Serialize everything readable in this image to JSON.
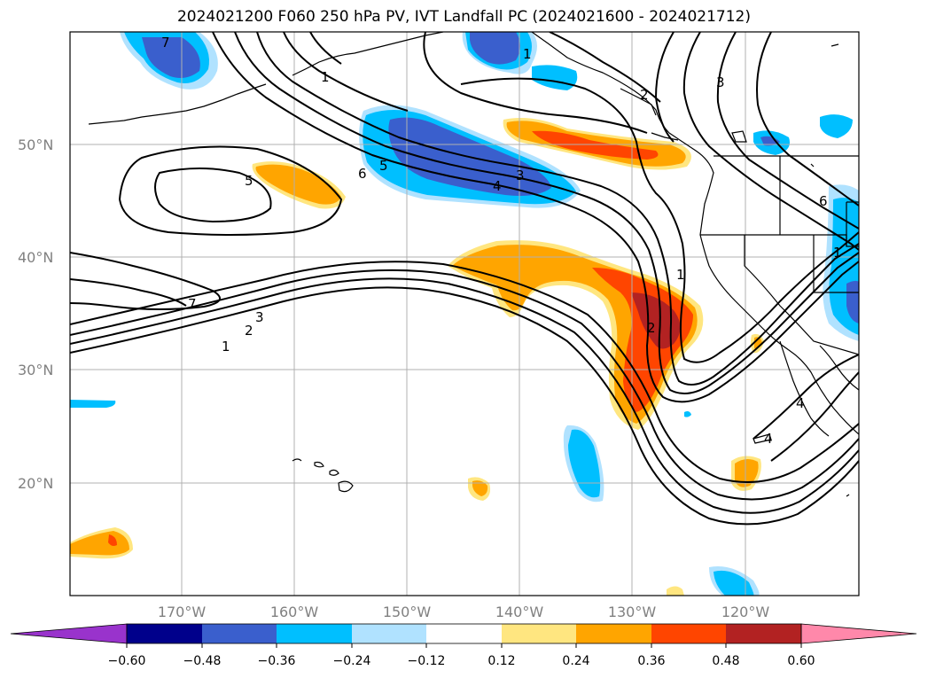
{
  "title": "2024021200 F060 250 hPa PV, IVT Landfall PC (2024021600 - 2024021712)",
  "map": {
    "region": "North-East Pacific and western North America",
    "lat_labels": [
      "50°N",
      "40°N",
      "30°N",
      "20°N"
    ],
    "lon_labels": [
      "170°W",
      "160°W",
      "150°W",
      "140°W",
      "130°W",
      "120°W"
    ],
    "grid": true
  },
  "colorbar": {
    "tick_labels": [
      "−0.60",
      "−0.48",
      "−0.36",
      "−0.24",
      "−0.12",
      "0.12",
      "0.24",
      "0.36",
      "0.48",
      "0.60"
    ],
    "colors": [
      "#9933cc",
      "#00008b",
      "#3a5fcd",
      "#00bfff",
      "#b0e2ff",
      "#ffffff",
      "#ffe680",
      "#ffa500",
      "#ff4500",
      "#b22222",
      "#ff88aa"
    ],
    "extend": "both"
  },
  "contour_labels": {
    "c7_west": "7",
    "c7_nw": "7",
    "c5_west": "5",
    "c6_mid": "6",
    "c5_mid": "5",
    "c4_mid": "4",
    "c3_mid": "3",
    "c3_south": "3",
    "c2_south": "2",
    "c1_south": "1",
    "c1_north": "1",
    "c1_ne": "1",
    "c2_ne": "2",
    "c3_ne": "3",
    "c1_coast": "1",
    "c2_coast": "2",
    "c6_east": "6",
    "c1_east": "1",
    "c4_baja": "4",
    "c4_baja2": "4"
  }
}
